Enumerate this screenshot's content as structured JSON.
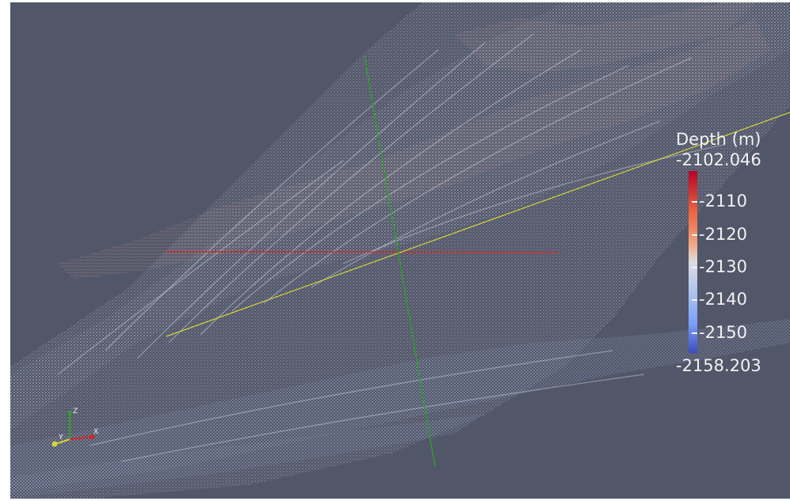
{
  "legend": {
    "title": "Depth (m)",
    "max_label": "-2102.046",
    "min_label": "-2158.203",
    "ticks": [
      "-2110",
      "-2120",
      "-2130",
      "-2140",
      "-2150"
    ]
  },
  "axes": {
    "z_label": "Z",
    "y_label": "Y",
    "x_label": "X"
  },
  "colors": {
    "background": "#525669",
    "x_axis": "#d62728",
    "y_axis": "#d4d43a",
    "z_axis": "#2ca02c"
  }
}
